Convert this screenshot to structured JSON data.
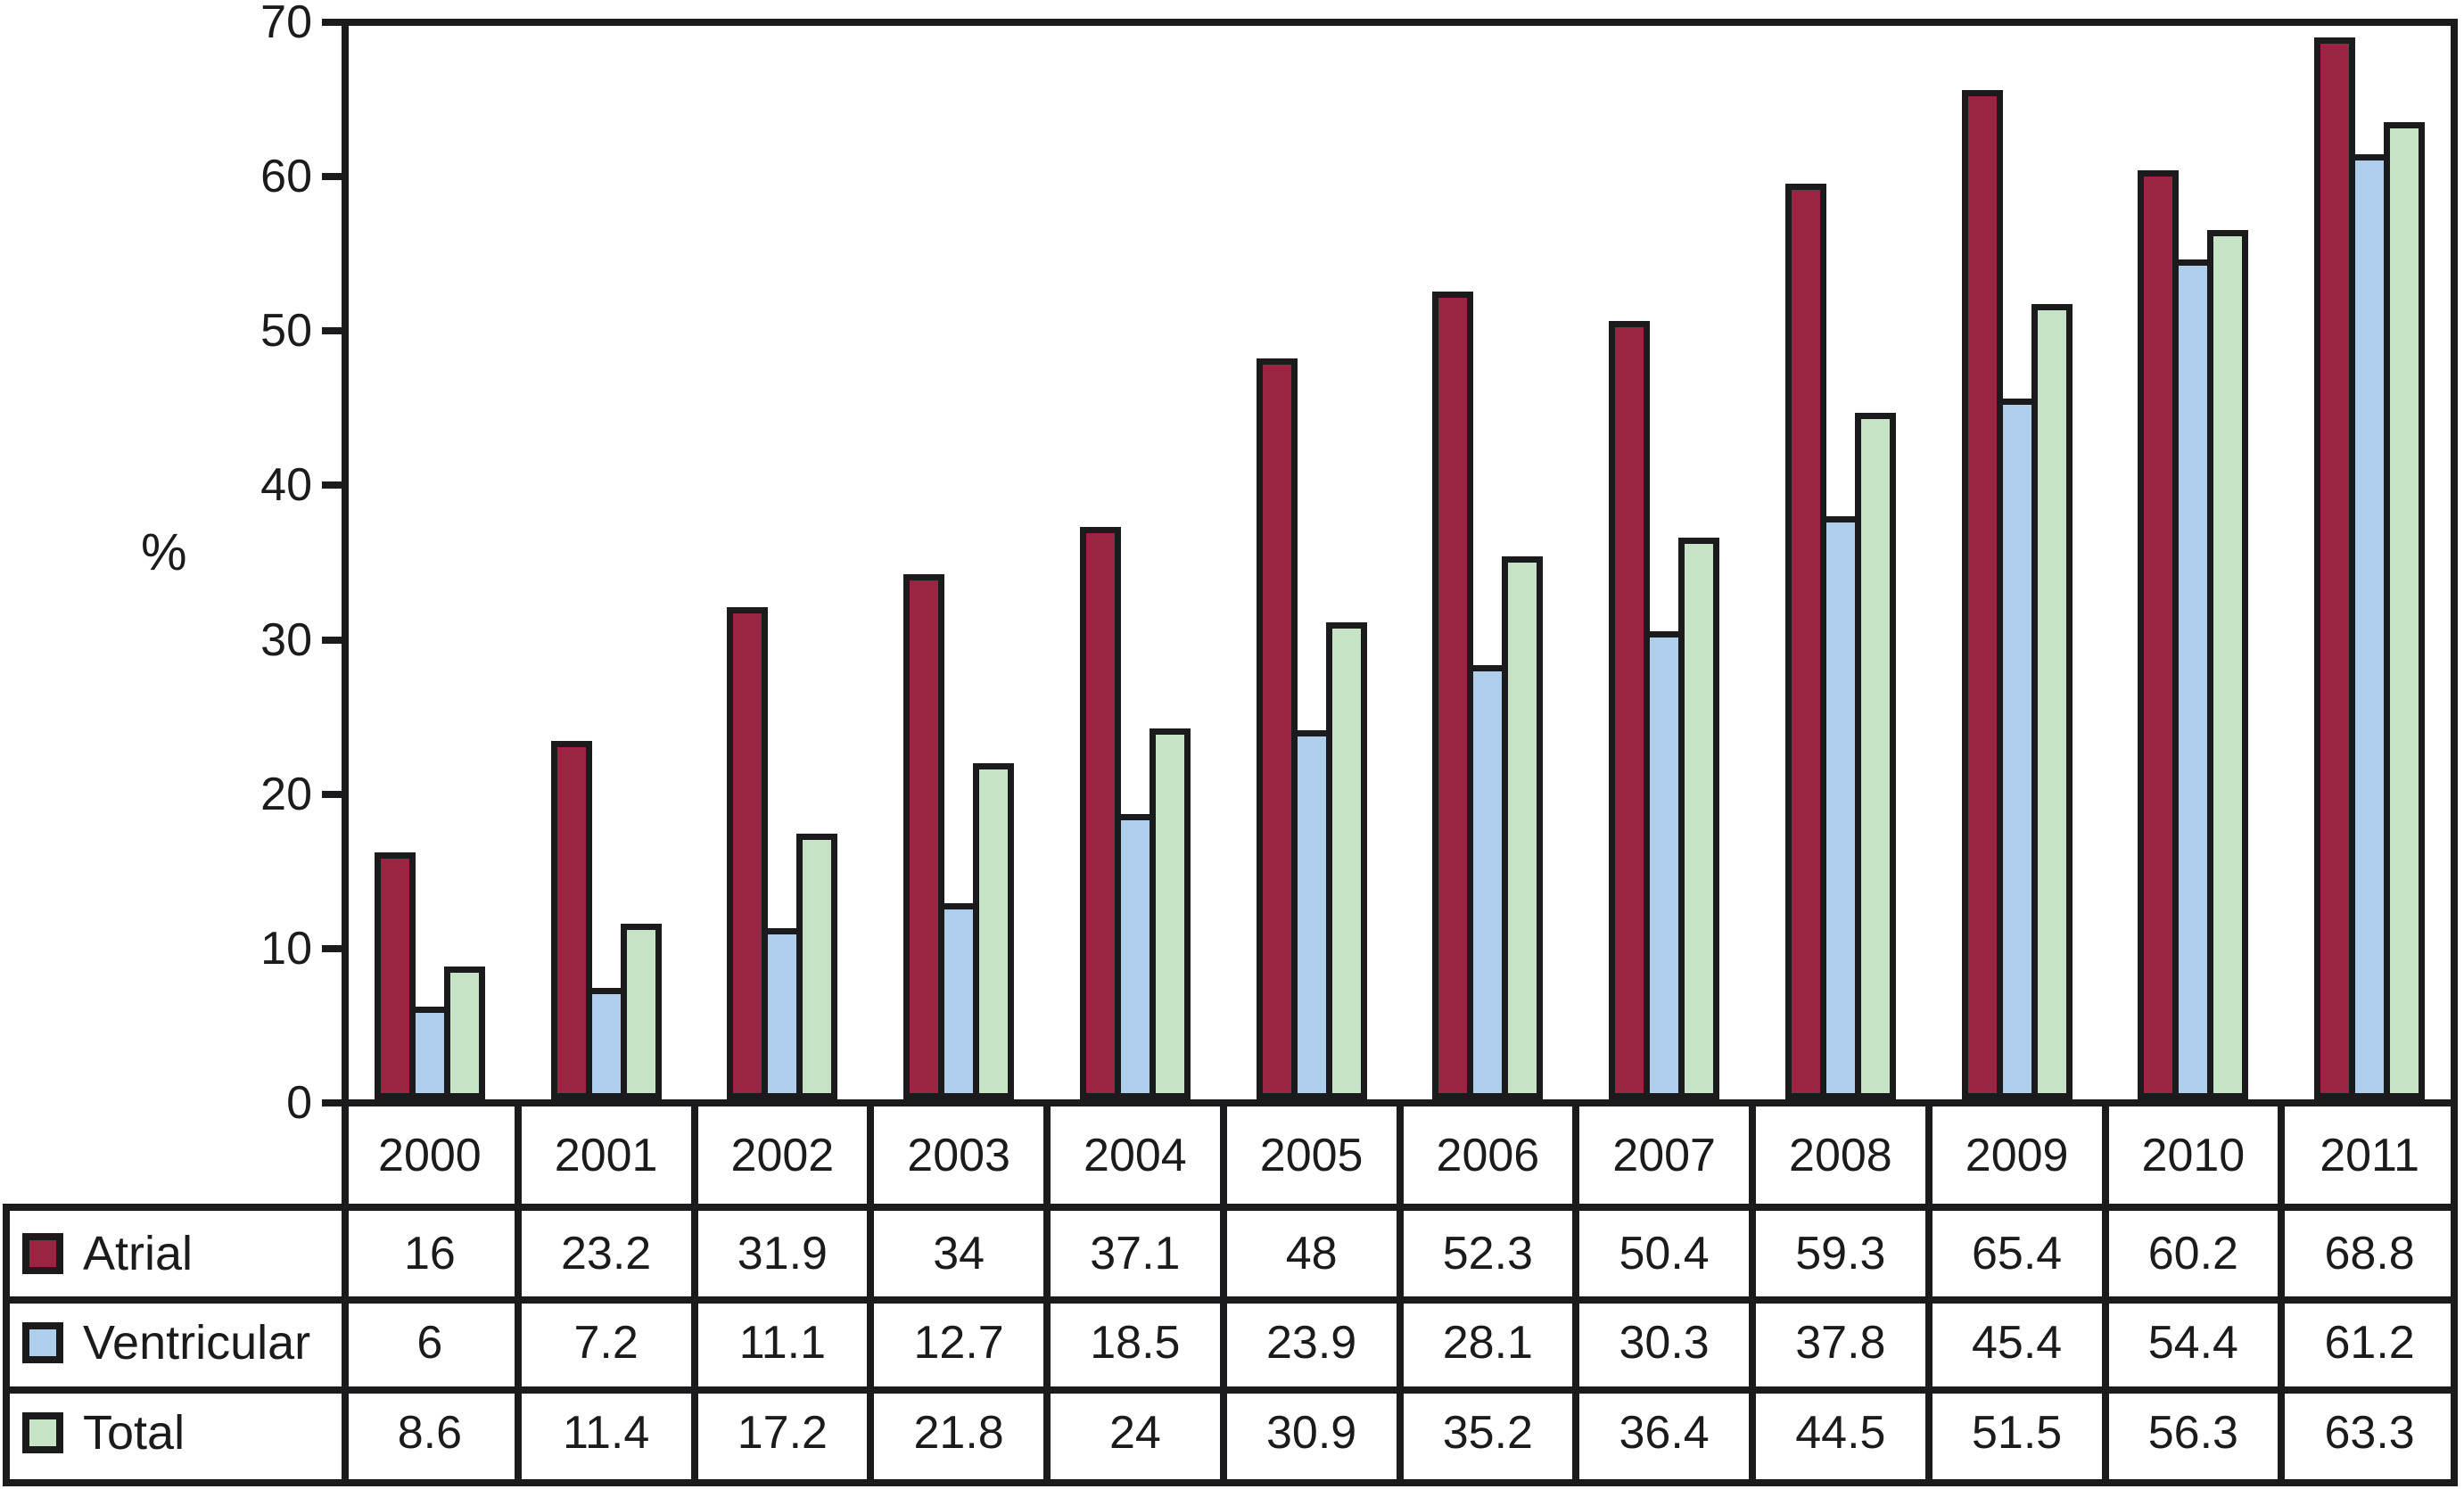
{
  "chart_data": {
    "type": "bar",
    "title": "",
    "xlabel": "",
    "ylabel": "%",
    "ylim": [
      0,
      70
    ],
    "yticks": [
      0,
      10,
      20,
      30,
      40,
      50,
      60,
      70
    ],
    "grid": false,
    "legend_position": "table-left",
    "categories": [
      "2000",
      "2001",
      "2002",
      "2003",
      "2004",
      "2005",
      "2006",
      "2007",
      "2008",
      "2009",
      "2010",
      "2011"
    ],
    "series": [
      {
        "name": "Atrial",
        "color": "#9A2441",
        "values": [
          16,
          23.2,
          31.9,
          34,
          37.1,
          48,
          52.3,
          50.4,
          59.3,
          65.4,
          60.2,
          68.8
        ]
      },
      {
        "name": "Ventricular",
        "color": "#AFCEEB",
        "values": [
          6,
          7.2,
          11.1,
          12.7,
          18.5,
          23.9,
          28.1,
          30.3,
          37.8,
          45.4,
          54.4,
          61.2
        ]
      },
      {
        "name": "Total",
        "color": "#C7E3C5",
        "values": [
          8.6,
          11.4,
          17.2,
          21.8,
          24,
          30.9,
          35.2,
          36.4,
          44.5,
          51.5,
          56.3,
          63.3
        ]
      }
    ]
  },
  "colors": {
    "outline": "#1b1b1d",
    "background": "#FFFFFF",
    "atrial": "#9A2441",
    "ventricular": "#AFCEEB",
    "total": "#C7E3C5"
  }
}
